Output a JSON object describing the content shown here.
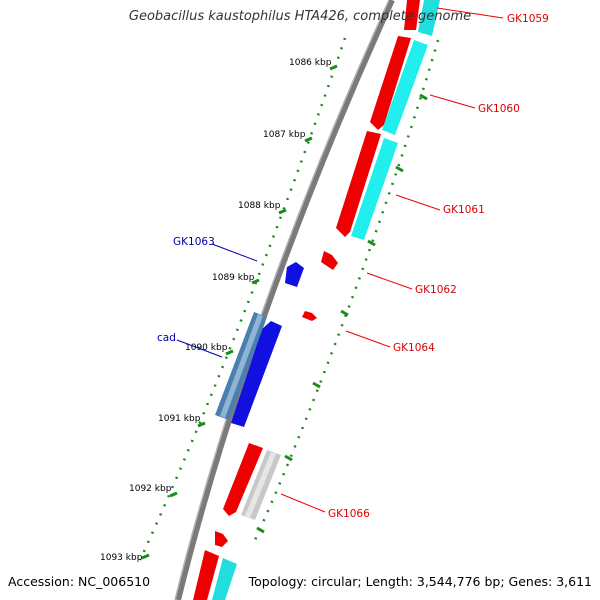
{
  "title": "Geobacillus kaustophilus HTA426, complete genome",
  "footer": {
    "accession": "Accession: NC_006510",
    "topology": "Topology: circular; Length: 3,544,776 bp; Genes: 3,611"
  },
  "colors": {
    "backbone": "#808080",
    "forward_gene": "#ff0000",
    "reverse_gene": "#00ffff",
    "rna_gene": "#0000ff",
    "operon_feature": "#4682b4",
    "pseudo_gene": "#c0c0c0",
    "ruler": "#008000",
    "label_forward": "#ff0000",
    "label_reverse": "#0000aa"
  },
  "ruler_ticks": [
    "1086 kbp",
    "1087 kbp",
    "1088 kbp",
    "1089 kbp",
    "1090 kbp",
    "1091 kbp",
    "1092 kbp",
    "1093 kbp"
  ],
  "gene_labels": [
    {
      "name": "GK1059",
      "strand": "right"
    },
    {
      "name": "GK1060",
      "strand": "right"
    },
    {
      "name": "GK1061",
      "strand": "right"
    },
    {
      "name": "GK1062",
      "strand": "right"
    },
    {
      "name": "GK1064",
      "strand": "right"
    },
    {
      "name": "GK1066",
      "strand": "right"
    },
    {
      "name": "GK1063",
      "strand": "left"
    },
    {
      "name": "cad",
      "strand": "left"
    }
  ]
}
